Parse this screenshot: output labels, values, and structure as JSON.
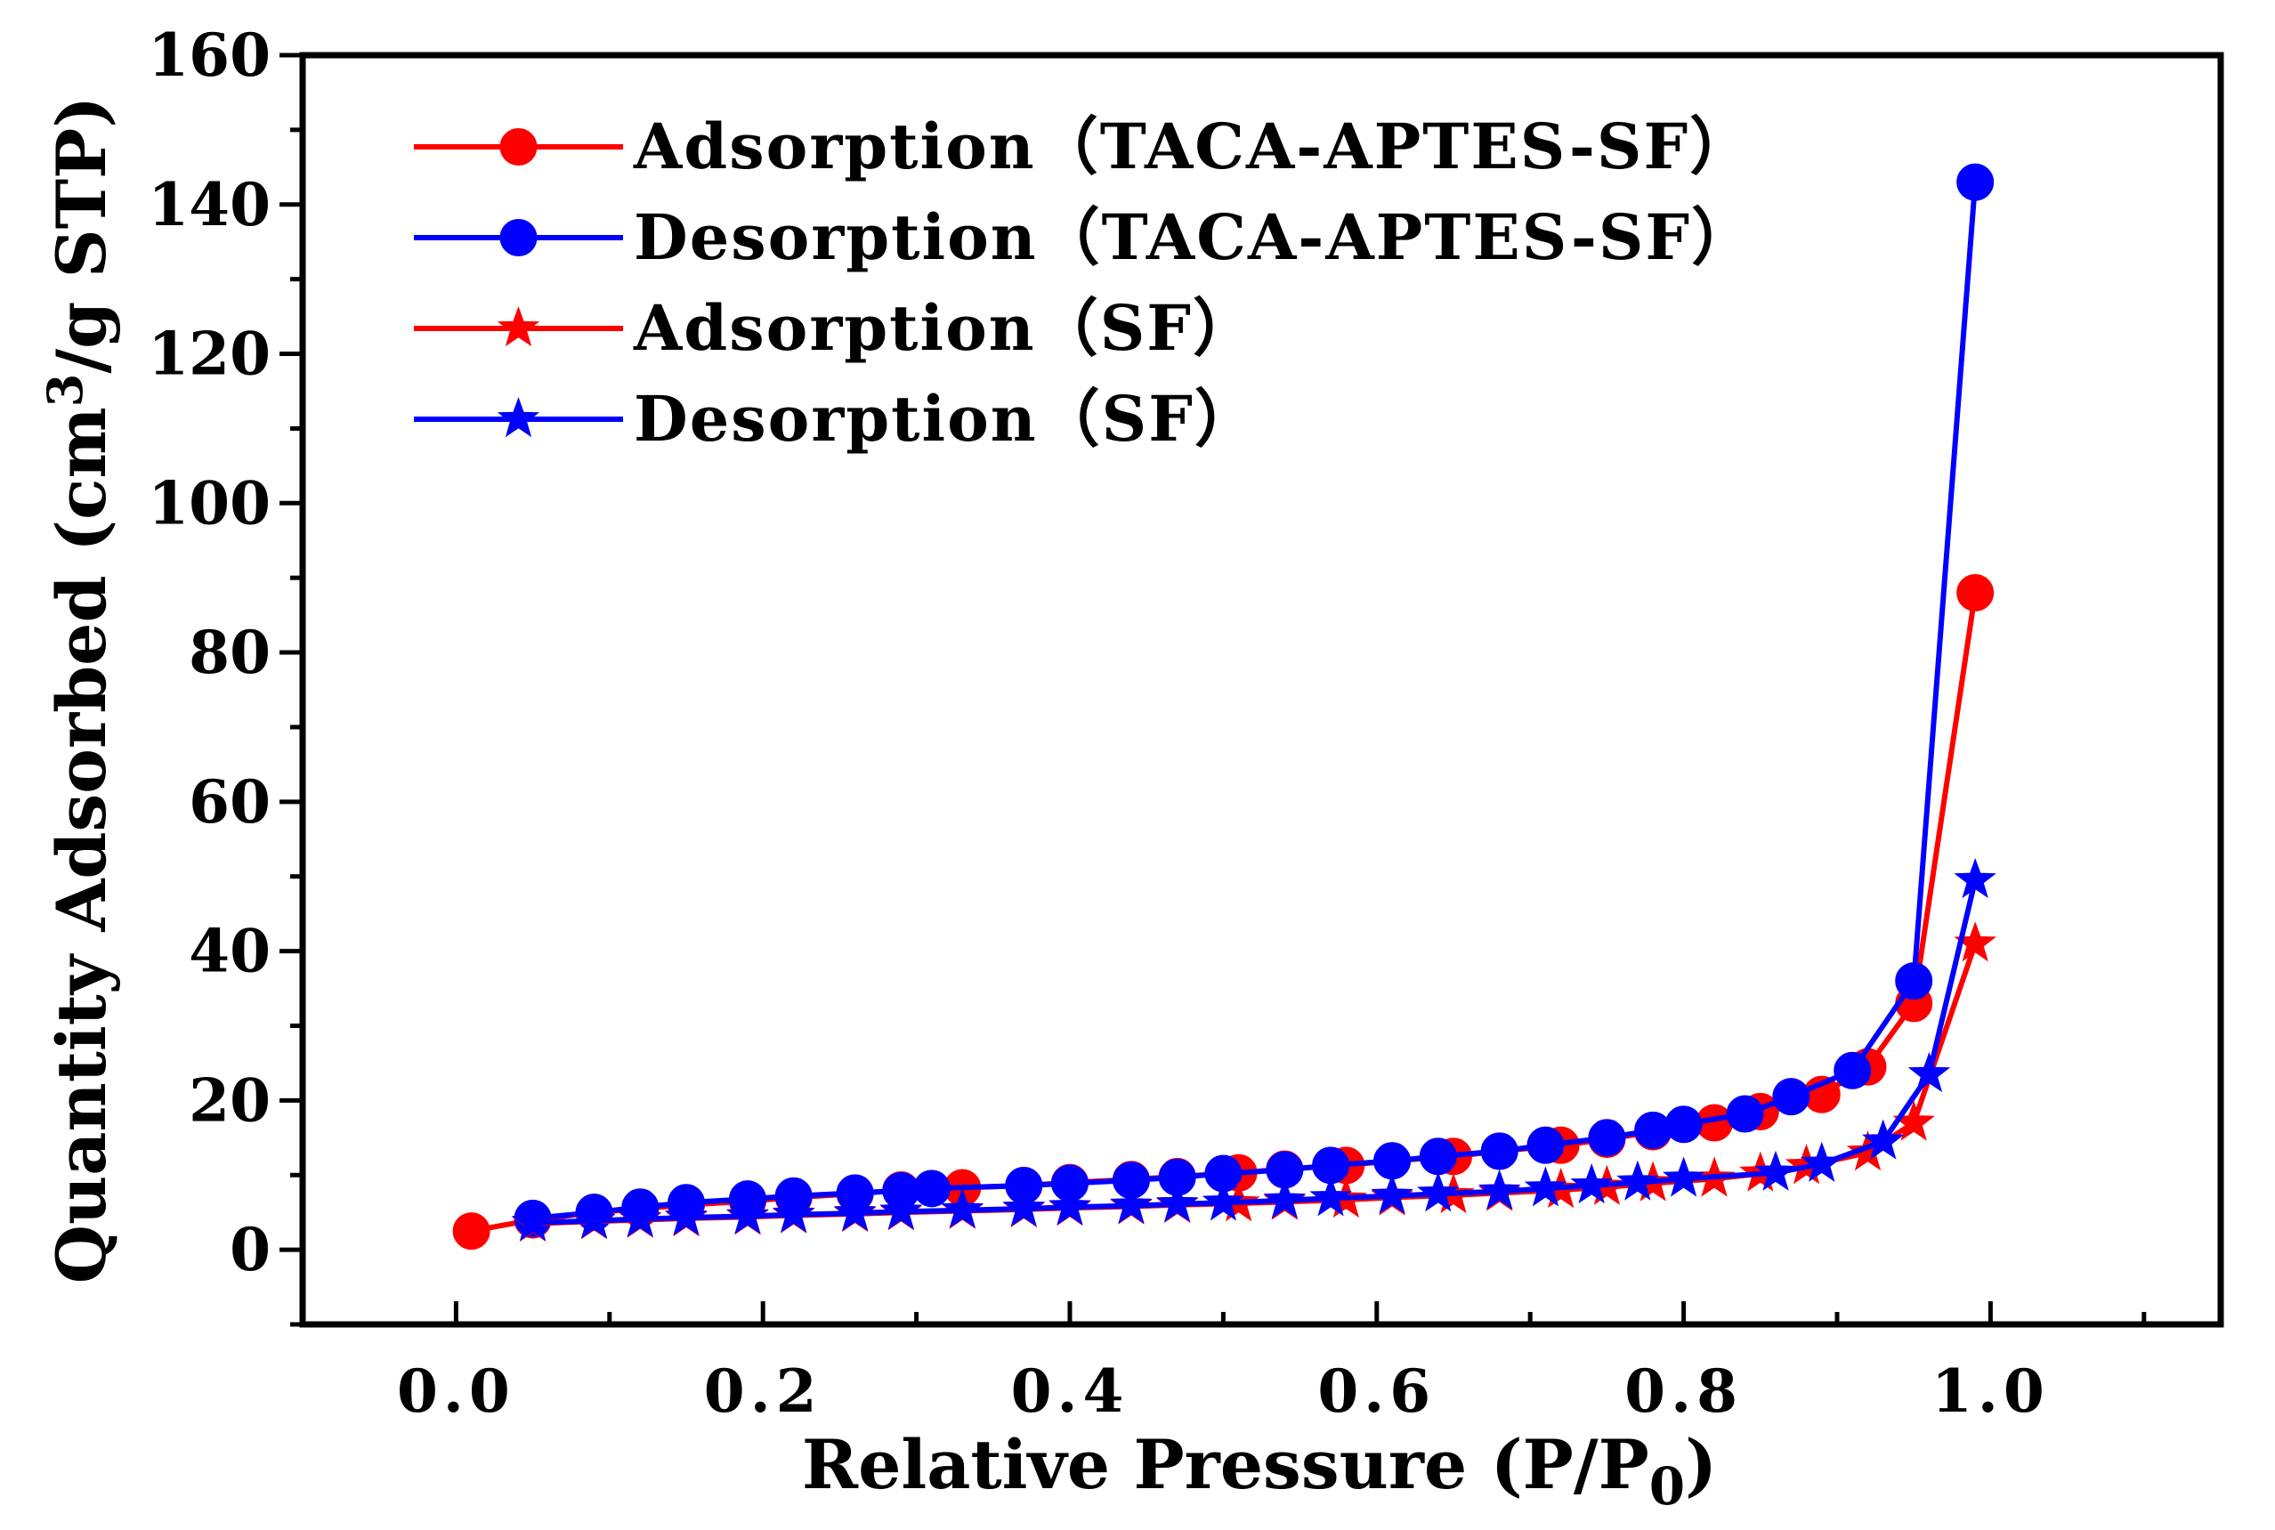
{
  "chart_data": {
    "type": "line",
    "title": "",
    "xlabel": "Relative Pressure (P/P",
    "xlabel_sub": "0",
    "xlabel_end": ")",
    "ylabel_pre": "Quantity Adsorbed (cm",
    "ylabel_sup": "3",
    "ylabel_post": "/g STP)",
    "xlim": [
      -0.1,
      1.15
    ],
    "ylim": [
      -10,
      160
    ],
    "xticks": [
      0.0,
      0.2,
      0.4,
      0.6,
      0.8,
      1.0
    ],
    "xtick_labels": [
      "0.0",
      "0.2",
      "0.4",
      "0.6",
      "0.8",
      "1.0"
    ],
    "yticks": [
      0,
      20,
      40,
      60,
      80,
      100,
      120,
      140,
      160
    ],
    "ytick_labels": [
      "0",
      "20",
      "40",
      "60",
      "80",
      "100",
      "120",
      "140",
      "160"
    ],
    "legend_position": "top-left",
    "series": [
      {
        "name": "Adsorption（TACA-APTES-SF）",
        "color": "#ff0000",
        "marker": "circle",
        "x": [
          0.01,
          0.05,
          0.09,
          0.12,
          0.15,
          0.19,
          0.22,
          0.26,
          0.29,
          0.33,
          0.37,
          0.4,
          0.44,
          0.47,
          0.51,
          0.54,
          0.58,
          0.61,
          0.65,
          0.68,
          0.72,
          0.75,
          0.78,
          0.82,
          0.85,
          0.89,
          0.92,
          0.95,
          0.99
        ],
        "y": [
          2.5,
          4.0,
          5.0,
          5.5,
          6.0,
          6.5,
          7.0,
          7.5,
          8.0,
          8.3,
          8.6,
          9.0,
          9.4,
          9.8,
          10.3,
          10.8,
          11.3,
          11.9,
          12.5,
          13.2,
          14.0,
          14.8,
          15.8,
          17.0,
          18.5,
          20.8,
          24.5,
          33.0,
          88.0
        ]
      },
      {
        "name": "Desorption（TACA-APTES-SF）",
        "color": "#0000ff",
        "marker": "circle",
        "x": [
          0.99,
          0.95,
          0.91,
          0.87,
          0.84,
          0.8,
          0.78,
          0.75,
          0.71,
          0.68,
          0.64,
          0.61,
          0.57,
          0.54,
          0.5,
          0.47,
          0.44,
          0.4,
          0.37,
          0.31,
          0.29,
          0.26,
          0.22,
          0.19,
          0.15,
          0.12,
          0.09,
          0.05
        ],
        "y": [
          143.0,
          36.0,
          24.0,
          20.5,
          18.2,
          16.8,
          16.0,
          15.0,
          14.0,
          13.2,
          12.5,
          11.9,
          11.3,
          10.7,
          10.2,
          9.7,
          9.3,
          8.9,
          8.6,
          8.2,
          7.9,
          7.6,
          7.2,
          6.8,
          6.3,
          5.7,
          5.0,
          4.2
        ]
      },
      {
        "name": "Adsorption（SF）",
        "color": "#ff0000",
        "marker": "star",
        "x": [
          0.05,
          0.09,
          0.12,
          0.15,
          0.19,
          0.22,
          0.26,
          0.29,
          0.33,
          0.37,
          0.4,
          0.44,
          0.47,
          0.51,
          0.54,
          0.58,
          0.61,
          0.65,
          0.68,
          0.72,
          0.75,
          0.78,
          0.82,
          0.85,
          0.88,
          0.92,
          0.95,
          0.99
        ],
        "y": [
          3.5,
          3.8,
          4.0,
          4.2,
          4.4,
          4.6,
          4.8,
          5.0,
          5.2,
          5.4,
          5.6,
          5.8,
          6.0,
          6.2,
          6.4,
          6.7,
          7.0,
          7.3,
          7.6,
          8.0,
          8.4,
          8.9,
          9.5,
          10.2,
          11.2,
          13.0,
          17.0,
          41.0
        ]
      },
      {
        "name": "Desorption（SF）",
        "color": "#0000ff",
        "marker": "star",
        "x": [
          0.99,
          0.96,
          0.93,
          0.89,
          0.86,
          0.8,
          0.77,
          0.74,
          0.71,
          0.68,
          0.64,
          0.61,
          0.57,
          0.54,
          0.5,
          0.47,
          0.44,
          0.4,
          0.37,
          0.33,
          0.29,
          0.26,
          0.22,
          0.19,
          0.15,
          0.12,
          0.09,
          0.05
        ],
        "y": [
          49.5,
          23.5,
          14.5,
          11.5,
          10.3,
          9.5,
          9.0,
          8.6,
          8.2,
          7.8,
          7.5,
          7.2,
          6.9,
          6.6,
          6.3,
          6.1,
          5.9,
          5.7,
          5.5,
          5.3,
          5.1,
          4.9,
          4.7,
          4.5,
          4.3,
          4.1,
          3.9,
          3.6
        ]
      }
    ]
  }
}
